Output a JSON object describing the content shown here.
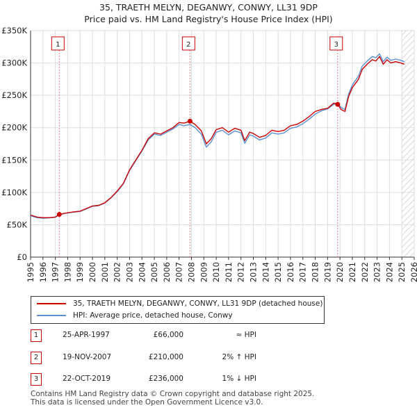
{
  "header": {
    "title": "35, TRAETH MELYN, DEGANWY, CONWY, LL31 9DP",
    "subtitle": "Price paid vs. HM Land Registry's House Price Index (HPI)"
  },
  "chart_data": {
    "type": "line",
    "ylim": [
      0,
      350000
    ],
    "xlim": [
      1995,
      2026
    ],
    "y_ticks": [
      0,
      50000,
      100000,
      150000,
      200000,
      250000,
      300000,
      350000
    ],
    "y_tick_labels": [
      "£0",
      "£50K",
      "£100K",
      "£150K",
      "£200K",
      "£250K",
      "£300K",
      "£350K"
    ],
    "x_ticks": [
      "1995",
      "1996",
      "1997",
      "1998",
      "1999",
      "2000",
      "2001",
      "2002",
      "2003",
      "2004",
      "2005",
      "2006",
      "2007",
      "2008",
      "2009",
      "2010",
      "2011",
      "2012",
      "2013",
      "2014",
      "2015",
      "2016",
      "2017",
      "2018",
      "2019",
      "2020",
      "2021",
      "2022",
      "2023",
      "2024",
      "2025",
      "2026"
    ],
    "forecast_start": 2025.0,
    "series": [
      {
        "name": "35, TRAETH MELYN, DEGANWY, CONWY, LL31 9DP (detached house)",
        "color": "#cc0000",
        "points": [
          [
            1995.0,
            65000
          ],
          [
            1995.5,
            62000
          ],
          [
            1996.0,
            61000
          ],
          [
            1996.5,
            61000
          ],
          [
            1997.0,
            62000
          ],
          [
            1997.32,
            66000
          ],
          [
            1997.8,
            68000
          ],
          [
            1998.5,
            70000
          ],
          [
            1999.0,
            71000
          ],
          [
            1999.5,
            75000
          ],
          [
            2000.0,
            79000
          ],
          [
            2000.5,
            80000
          ],
          [
            2001.0,
            84000
          ],
          [
            2001.5,
            92000
          ],
          [
            2002.0,
            102000
          ],
          [
            2002.5,
            114000
          ],
          [
            2003.0,
            135000
          ],
          [
            2003.5,
            150000
          ],
          [
            2004.0,
            165000
          ],
          [
            2004.5,
            183000
          ],
          [
            2005.0,
            192000
          ],
          [
            2005.5,
            190000
          ],
          [
            2006.0,
            195000
          ],
          [
            2006.5,
            200000
          ],
          [
            2007.0,
            208000
          ],
          [
            2007.4,
            207000
          ],
          [
            2007.88,
            210000
          ],
          [
            2008.3,
            205000
          ],
          [
            2008.8,
            195000
          ],
          [
            2009.2,
            175000
          ],
          [
            2009.6,
            183000
          ],
          [
            2010.0,
            197000
          ],
          [
            2010.5,
            200000
          ],
          [
            2011.0,
            193000
          ],
          [
            2011.5,
            199000
          ],
          [
            2012.0,
            196000
          ],
          [
            2012.3,
            180000
          ],
          [
            2012.7,
            193000
          ],
          [
            2013.0,
            191000
          ],
          [
            2013.5,
            185000
          ],
          [
            2014.0,
            188000
          ],
          [
            2014.5,
            196000
          ],
          [
            2015.0,
            194000
          ],
          [
            2015.5,
            196000
          ],
          [
            2016.0,
            203000
          ],
          [
            2016.5,
            205000
          ],
          [
            2017.0,
            210000
          ],
          [
            2017.5,
            217000
          ],
          [
            2018.0,
            225000
          ],
          [
            2018.5,
            228000
          ],
          [
            2019.0,
            230000
          ],
          [
            2019.5,
            238000
          ],
          [
            2019.81,
            236000
          ],
          [
            2020.1,
            228000
          ],
          [
            2020.4,
            225000
          ],
          [
            2020.7,
            248000
          ],
          [
            2021.0,
            262000
          ],
          [
            2021.5,
            275000
          ],
          [
            2021.8,
            290000
          ],
          [
            2022.2,
            298000
          ],
          [
            2022.6,
            305000
          ],
          [
            2022.9,
            303000
          ],
          [
            2023.2,
            310000
          ],
          [
            2023.5,
            298000
          ],
          [
            2023.8,
            305000
          ],
          [
            2024.1,
            300000
          ],
          [
            2024.5,
            302000
          ],
          [
            2024.9,
            300000
          ],
          [
            2025.2,
            298000
          ]
        ]
      },
      {
        "name": "HPI: Average price, detached house, Conwy",
        "color": "#5a8fd6",
        "points": [
          [
            1995.0,
            64000
          ],
          [
            1995.5,
            61000
          ],
          [
            1996.0,
            60000
          ],
          [
            1996.5,
            60500
          ],
          [
            1997.0,
            61500
          ],
          [
            1997.32,
            65500
          ],
          [
            1997.8,
            67500
          ],
          [
            1998.5,
            69500
          ],
          [
            1999.0,
            70500
          ],
          [
            1999.5,
            74500
          ],
          [
            2000.0,
            78500
          ],
          [
            2000.5,
            79500
          ],
          [
            2001.0,
            83500
          ],
          [
            2001.5,
            91500
          ],
          [
            2002.0,
            101000
          ],
          [
            2002.5,
            113000
          ],
          [
            2003.0,
            134000
          ],
          [
            2003.5,
            149000
          ],
          [
            2004.0,
            164000
          ],
          [
            2004.5,
            181000
          ],
          [
            2005.0,
            190000
          ],
          [
            2005.5,
            188000
          ],
          [
            2006.0,
            193000
          ],
          [
            2006.5,
            198000
          ],
          [
            2007.0,
            205000
          ],
          [
            2007.4,
            203000
          ],
          [
            2007.88,
            205000
          ],
          [
            2008.3,
            200000
          ],
          [
            2008.8,
            190000
          ],
          [
            2009.2,
            170000
          ],
          [
            2009.6,
            178000
          ],
          [
            2010.0,
            193000
          ],
          [
            2010.5,
            196000
          ],
          [
            2011.0,
            189000
          ],
          [
            2011.5,
            195000
          ],
          [
            2012.0,
            192000
          ],
          [
            2012.3,
            176000
          ],
          [
            2012.7,
            189000
          ],
          [
            2013.0,
            187000
          ],
          [
            2013.5,
            181000
          ],
          [
            2014.0,
            184000
          ],
          [
            2014.5,
            192000
          ],
          [
            2015.0,
            190000
          ],
          [
            2015.5,
            192000
          ],
          [
            2016.0,
            199000
          ],
          [
            2016.5,
            201000
          ],
          [
            2017.0,
            206000
          ],
          [
            2017.5,
            213000
          ],
          [
            2018.0,
            221000
          ],
          [
            2018.5,
            226000
          ],
          [
            2019.0,
            229000
          ],
          [
            2019.5,
            236000
          ],
          [
            2019.81,
            238000
          ],
          [
            2020.1,
            231000
          ],
          [
            2020.4,
            228000
          ],
          [
            2020.7,
            252000
          ],
          [
            2021.0,
            266000
          ],
          [
            2021.5,
            280000
          ],
          [
            2021.8,
            295000
          ],
          [
            2022.2,
            303000
          ],
          [
            2022.6,
            310000
          ],
          [
            2022.9,
            308000
          ],
          [
            2023.2,
            314000
          ],
          [
            2023.5,
            302000
          ],
          [
            2023.8,
            309000
          ],
          [
            2024.1,
            304000
          ],
          [
            2024.5,
            306000
          ],
          [
            2024.9,
            304000
          ],
          [
            2025.2,
            302000
          ]
        ]
      }
    ],
    "sales": [
      {
        "label": "1",
        "x": 1997.32,
        "y": 66000
      },
      {
        "label": "2",
        "x": 2007.88,
        "y": 210000
      },
      {
        "label": "3",
        "x": 2019.81,
        "y": 236000
      }
    ]
  },
  "legend": {
    "items": [
      {
        "label": "35, TRAETH MELYN, DEGANWY, CONWY, LL31 9DP (detached house)",
        "color": "#cc0000"
      },
      {
        "label": "HPI: Average price, detached house, Conwy",
        "color": "#5a8fd6"
      }
    ]
  },
  "sales_table": [
    {
      "num": "1",
      "date": "25-APR-1997",
      "price": "£66,000",
      "hpi": "≈ HPI"
    },
    {
      "num": "2",
      "date": "19-NOV-2007",
      "price": "£210,000",
      "hpi": "2% ↑ HPI"
    },
    {
      "num": "3",
      "date": "22-OCT-2019",
      "price": "£236,000",
      "hpi": "1% ↓ HPI"
    }
  ],
  "footer": {
    "line1": "Contains HM Land Registry data © Crown copyright and database right 2025.",
    "line2": "This data is licensed under the Open Government Licence v3.0."
  }
}
